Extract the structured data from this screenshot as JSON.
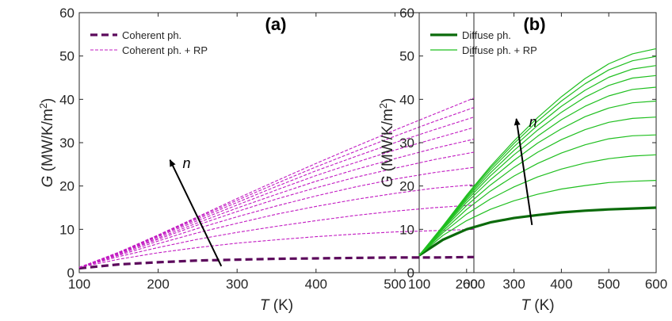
{
  "chart_data": [
    {
      "type": "line",
      "panel_label": "(a)",
      "xlabel": {
        "symbol": "T",
        "unit": " (K)"
      },
      "ylabel": {
        "symbol": "G",
        "unit": " (MW/K/m",
        "sup": "2",
        "close": ")"
      },
      "xlim": [
        100,
        600
      ],
      "ylim": [
        0,
        60
      ],
      "xticks": [
        100,
        200,
        300,
        400,
        500,
        600
      ],
      "yticks": [
        0,
        10,
        20,
        30,
        40,
        50,
        60
      ],
      "annotation": "n",
      "legend": [
        {
          "label": "Coherent ph.",
          "color": "#5c0a5c",
          "style": "thick-dashed"
        },
        {
          "label": "Coherent ph. + RP",
          "color": "#c21bc2",
          "style": "thin-dashed"
        }
      ],
      "x": [
        100,
        150,
        200,
        250,
        300,
        350,
        400,
        450,
        500,
        550,
        600
      ],
      "series": [
        {
          "legend_index": 0,
          "values": [
            1.0,
            1.9,
            2.4,
            2.8,
            3.0,
            3.2,
            3.3,
            3.4,
            3.5,
            3.5,
            3.6
          ]
        },
        {
          "legend_index": 1,
          "values": [
            1.2,
            3.1,
            4.6,
            5.8,
            6.8,
            7.6,
            8.3,
            8.9,
            9.4,
            9.7,
            10.0
          ]
        },
        {
          "legend_index": 1,
          "values": [
            1.2,
            3.7,
            5.8,
            7.7,
            9.3,
            10.7,
            12.0,
            13.2,
            14.2,
            15.0,
            15.6
          ]
        },
        {
          "legend_index": 1,
          "values": [
            1.2,
            4.0,
            6.7,
            9.2,
            11.4,
            13.5,
            15.3,
            16.9,
            18.3,
            19.5,
            20.3
          ]
        },
        {
          "legend_index": 1,
          "values": [
            1.2,
            4.2,
            7.3,
            10.2,
            12.9,
            15.4,
            17.7,
            19.8,
            21.6,
            23.1,
            24.3
          ]
        },
        {
          "legend_index": 1,
          "values": [
            1.2,
            4.4,
            7.7,
            11.0,
            14.1,
            17.0,
            19.6,
            22.0,
            24.1,
            26.1,
            27.8
          ]
        },
        {
          "legend_index": 1,
          "values": [
            1.2,
            4.5,
            8.0,
            11.5,
            14.9,
            18.1,
            21.1,
            23.8,
            26.3,
            28.7,
            30.8
          ]
        },
        {
          "legend_index": 1,
          "values": [
            1.2,
            4.6,
            8.3,
            12.0,
            15.6,
            19.1,
            22.4,
            25.4,
            28.3,
            30.9,
            33.5
          ]
        },
        {
          "legend_index": 1,
          "values": [
            1.2,
            4.6,
            8.5,
            12.4,
            16.2,
            19.9,
            23.5,
            26.8,
            30.0,
            33.0,
            35.9
          ]
        },
        {
          "legend_index": 1,
          "values": [
            1.2,
            4.7,
            8.6,
            12.7,
            16.7,
            20.6,
            24.4,
            28.0,
            31.5,
            34.9,
            38.1
          ]
        },
        {
          "legend_index": 1,
          "values": [
            1.2,
            4.7,
            8.7,
            12.9,
            17.1,
            21.2,
            25.2,
            29.1,
            32.9,
            36.6,
            40.3
          ]
        }
      ],
      "arrow": {
        "from": [
          280,
          1.5
        ],
        "to": [
          215,
          26
        ]
      }
    },
    {
      "type": "line",
      "panel_label": "(b)",
      "xlabel": {
        "symbol": "T",
        "unit": " (K)"
      },
      "ylabel": {
        "symbol": "G",
        "unit": " (MW/K/m",
        "sup": "2",
        "close": ")"
      },
      "xlim": [
        100,
        600
      ],
      "ylim": [
        0,
        60
      ],
      "xticks": [
        100,
        200,
        300,
        400,
        500,
        600
      ],
      "yticks": [
        0,
        10,
        20,
        30,
        40,
        50,
        60
      ],
      "annotation": "n",
      "legend": [
        {
          "label": "Diffuse ph.",
          "color": "#0b6b0b",
          "style": "thick-solid"
        },
        {
          "label": "Diffuse ph. + RP",
          "color": "#1fbf1f",
          "style": "thin-solid"
        }
      ],
      "x": [
        100,
        150,
        200,
        250,
        300,
        350,
        400,
        450,
        500,
        550,
        600
      ],
      "series": [
        {
          "legend_index": 0,
          "values": [
            4.0,
            7.6,
            10.0,
            11.6,
            12.6,
            13.3,
            13.9,
            14.3,
            14.6,
            14.8,
            15.0
          ]
        },
        {
          "legend_index": 1,
          "values": [
            4.0,
            8.6,
            12.0,
            14.6,
            16.6,
            18.1,
            19.3,
            20.1,
            20.8,
            21.1,
            21.3
          ]
        },
        {
          "legend_index": 1,
          "values": [
            4.0,
            9.2,
            13.5,
            17.0,
            19.8,
            22.1,
            23.9,
            25.3,
            26.3,
            26.9,
            27.2
          ]
        },
        {
          "legend_index": 1,
          "values": [
            4.0,
            9.6,
            14.6,
            18.8,
            22.3,
            25.2,
            27.6,
            29.5,
            30.9,
            31.6,
            31.8
          ]
        },
        {
          "legend_index": 1,
          "values": [
            4.0,
            10.0,
            15.5,
            20.2,
            24.3,
            27.8,
            30.7,
            33.0,
            34.7,
            35.6,
            35.9
          ]
        },
        {
          "legend_index": 1,
          "values": [
            4.0,
            10.2,
            16.2,
            21.4,
            25.9,
            29.9,
            33.2,
            36.0,
            38.0,
            39.2,
            39.6
          ]
        },
        {
          "legend_index": 1,
          "values": [
            4.0,
            10.4,
            16.7,
            22.3,
            27.2,
            31.5,
            35.3,
            38.4,
            40.8,
            42.3,
            42.8
          ]
        },
        {
          "legend_index": 1,
          "values": [
            4.0,
            10.5,
            17.1,
            23.0,
            28.2,
            32.9,
            37.0,
            40.5,
            43.2,
            44.9,
            45.5
          ]
        },
        {
          "legend_index": 1,
          "values": [
            4.0,
            10.6,
            17.4,
            23.6,
            29.1,
            34.0,
            38.4,
            42.1,
            45.1,
            47.0,
            47.8
          ]
        },
        {
          "legend_index": 1,
          "values": [
            4.0,
            10.7,
            17.7,
            24.1,
            29.8,
            35.0,
            39.6,
            43.6,
            46.8,
            48.9,
            49.9
          ]
        },
        {
          "legend_index": 1,
          "values": [
            4.0,
            10.8,
            17.9,
            24.5,
            30.4,
            35.8,
            40.6,
            44.8,
            48.2,
            50.5,
            51.7
          ]
        }
      ],
      "arrow": {
        "from": [
          338,
          11
        ],
        "to": [
          305,
          35.5
        ]
      }
    }
  ]
}
